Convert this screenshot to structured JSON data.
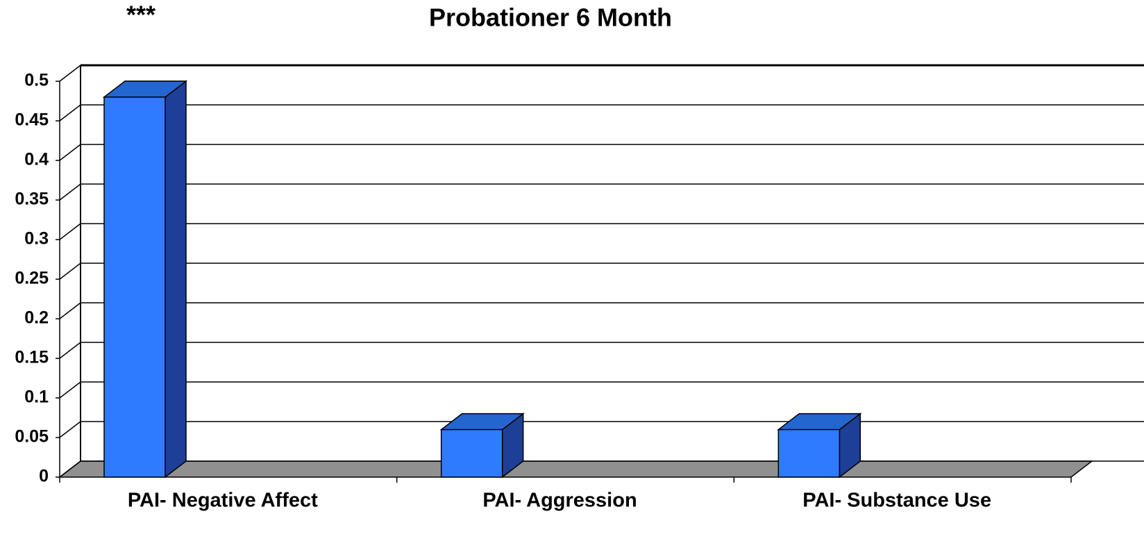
{
  "chart_data": {
    "type": "bar3d",
    "title": "Probationer 6 Month",
    "annotation": "***",
    "categories": [
      "PAI- Negative Affect",
      "PAI- Aggression",
      "PAI- Substance Use"
    ],
    "values": [
      0.48,
      0.06,
      0.06
    ],
    "colors": {
      "front": "#2e7bff",
      "top": "#2466d0",
      "side": "#1e3f96",
      "floor": "#909090"
    },
    "ylim": [
      0,
      0.5
    ],
    "yticks": [
      0,
      0.05,
      0.1,
      0.15,
      0.2,
      0.25,
      0.3,
      0.35,
      0.4,
      0.45,
      0.5
    ],
    "grid": true
  }
}
